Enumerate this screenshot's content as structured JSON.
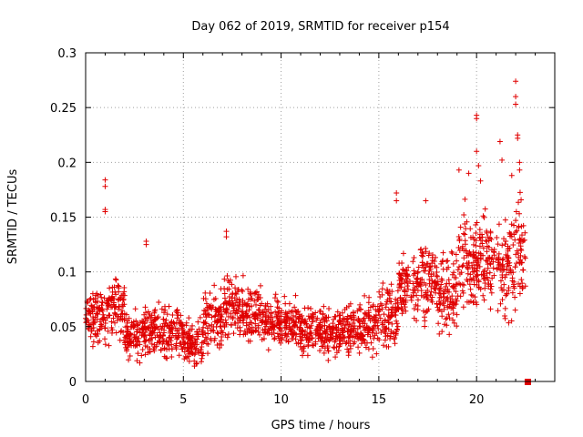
{
  "chart_data": {
    "type": "scatter",
    "title": "Day 062 of 2019, SRMTID for receiver p154",
    "xlabel": "GPS time / hours",
    "ylabel": "SRMTID / TECUs",
    "xlim": [
      0,
      24
    ],
    "ylim": [
      0,
      0.3
    ],
    "xticks": [
      0,
      5,
      10,
      15,
      20
    ],
    "yticks": [
      0,
      0.05,
      0.1,
      0.15,
      0.2,
      0.25,
      0.3
    ],
    "ytick_labels": [
      "0",
      "0.05",
      "0.1",
      "0.15",
      "0.2",
      "0.25",
      "0.3"
    ],
    "grid": true,
    "marker": "+",
    "color": "#e00000",
    "series": [
      {
        "name": "SRMTID",
        "segments": [
          {
            "x_start": 0.0,
            "x_end": 1.0,
            "mean": 0.06,
            "spread": 0.02
          },
          {
            "x_start": 1.0,
            "x_end": 2.0,
            "mean": 0.065,
            "spread": 0.025
          },
          {
            "x_start": 2.0,
            "x_end": 3.0,
            "mean": 0.042,
            "spread": 0.018
          },
          {
            "x_start": 3.0,
            "x_end": 4.0,
            "mean": 0.045,
            "spread": 0.02
          },
          {
            "x_start": 4.0,
            "x_end": 5.0,
            "mean": 0.045,
            "spread": 0.02
          },
          {
            "x_start": 5.0,
            "x_end": 6.0,
            "mean": 0.035,
            "spread": 0.018
          },
          {
            "x_start": 6.0,
            "x_end": 7.0,
            "mean": 0.055,
            "spread": 0.025
          },
          {
            "x_start": 7.0,
            "x_end": 8.0,
            "mean": 0.068,
            "spread": 0.025
          },
          {
            "x_start": 8.0,
            "x_end": 9.0,
            "mean": 0.065,
            "spread": 0.022
          },
          {
            "x_start": 9.0,
            "x_end": 10.0,
            "mean": 0.055,
            "spread": 0.02
          },
          {
            "x_start": 10.0,
            "x_end": 11.0,
            "mean": 0.05,
            "spread": 0.02
          },
          {
            "x_start": 11.0,
            "x_end": 12.0,
            "mean": 0.045,
            "spread": 0.018
          },
          {
            "x_start": 12.0,
            "x_end": 13.0,
            "mean": 0.045,
            "spread": 0.018
          },
          {
            "x_start": 13.0,
            "x_end": 14.0,
            "mean": 0.048,
            "spread": 0.02
          },
          {
            "x_start": 14.0,
            "x_end": 15.0,
            "mean": 0.05,
            "spread": 0.022
          },
          {
            "x_start": 15.0,
            "x_end": 16.0,
            "mean": 0.06,
            "spread": 0.025
          },
          {
            "x_start": 16.0,
            "x_end": 17.0,
            "mean": 0.085,
            "spread": 0.03
          },
          {
            "x_start": 17.0,
            "x_end": 18.0,
            "mean": 0.095,
            "spread": 0.03
          },
          {
            "x_start": 18.0,
            "x_end": 19.0,
            "mean": 0.08,
            "spread": 0.03
          },
          {
            "x_start": 19.0,
            "x_end": 20.0,
            "mean": 0.11,
            "spread": 0.04
          },
          {
            "x_start": 20.0,
            "x_end": 21.0,
            "mean": 0.11,
            "spread": 0.04
          },
          {
            "x_start": 21.0,
            "x_end": 22.0,
            "mean": 0.105,
            "spread": 0.04
          },
          {
            "x_start": 22.0,
            "x_end": 22.5,
            "mean": 0.12,
            "spread": 0.045
          }
        ],
        "notable_points": [
          {
            "x": 1.0,
            "y": 0.184
          },
          {
            "x": 1.0,
            "y": 0.178
          },
          {
            "x": 1.0,
            "y": 0.157
          },
          {
            "x": 1.0,
            "y": 0.155
          },
          {
            "x": 3.1,
            "y": 0.128
          },
          {
            "x": 3.1,
            "y": 0.125
          },
          {
            "x": 7.2,
            "y": 0.137
          },
          {
            "x": 7.2,
            "y": 0.132
          },
          {
            "x": 15.9,
            "y": 0.172
          },
          {
            "x": 15.9,
            "y": 0.165
          },
          {
            "x": 17.4,
            "y": 0.165
          },
          {
            "x": 19.1,
            "y": 0.193
          },
          {
            "x": 19.6,
            "y": 0.19
          },
          {
            "x": 20.0,
            "y": 0.243
          },
          {
            "x": 20.0,
            "y": 0.24
          },
          {
            "x": 20.0,
            "y": 0.21
          },
          {
            "x": 20.1,
            "y": 0.197
          },
          {
            "x": 20.2,
            "y": 0.183
          },
          {
            "x": 21.2,
            "y": 0.219
          },
          {
            "x": 21.3,
            "y": 0.202
          },
          {
            "x": 21.8,
            "y": 0.188
          },
          {
            "x": 22.0,
            "y": 0.274
          },
          {
            "x": 22.0,
            "y": 0.26
          },
          {
            "x": 22.0,
            "y": 0.253
          },
          {
            "x": 22.1,
            "y": 0.225
          },
          {
            "x": 22.1,
            "y": 0.222
          },
          {
            "x": 22.2,
            "y": 0.2
          },
          {
            "x": 22.2,
            "y": 0.193
          }
        ]
      }
    ],
    "end_marker": {
      "x": 22.6,
      "y": 0.0,
      "shape": "square"
    }
  }
}
